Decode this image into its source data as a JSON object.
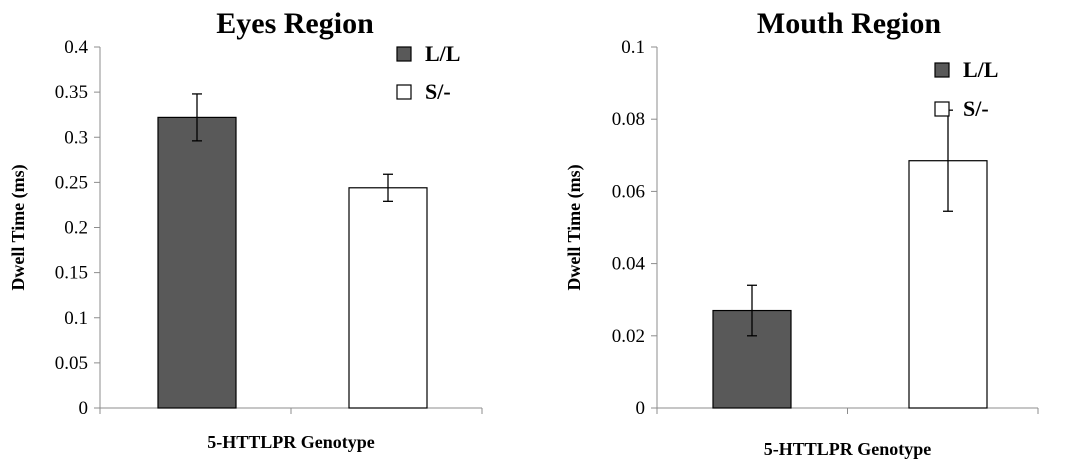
{
  "chart_data": [
    {
      "type": "bar",
      "title": "Eyes Region",
      "xlabel": "5-HTTLPR Genotype",
      "ylabel": "Dwell Time (ms)",
      "ylim": [
        0,
        0.4
      ],
      "yticks": [
        "0",
        "0.05",
        "0.1",
        "0.15",
        "0.2",
        "0.25",
        "0.3",
        "0.35",
        "0.4"
      ],
      "legend_position": "top-right",
      "series": [
        {
          "name": "L/L",
          "value": 0.322,
          "error": 0.026,
          "color": "#595959"
        },
        {
          "name": "S/-",
          "value": 0.244,
          "error": 0.015,
          "color": "#ffffff"
        }
      ]
    },
    {
      "type": "bar",
      "title": "Mouth Region",
      "xlabel": "5-HTTLPR Genotype",
      "ylabel": "Dwell Time (ms)",
      "ylim": [
        0,
        0.1
      ],
      "yticks": [
        "0",
        "0.02",
        "0.04",
        "0.06",
        "0.08",
        "0.1"
      ],
      "legend_position": "top-right",
      "series": [
        {
          "name": "L/L",
          "value": 0.027,
          "error": 0.007,
          "color": "#595959"
        },
        {
          "name": "S/-",
          "value": 0.0685,
          "error": 0.014,
          "color": "#ffffff"
        }
      ]
    }
  ]
}
